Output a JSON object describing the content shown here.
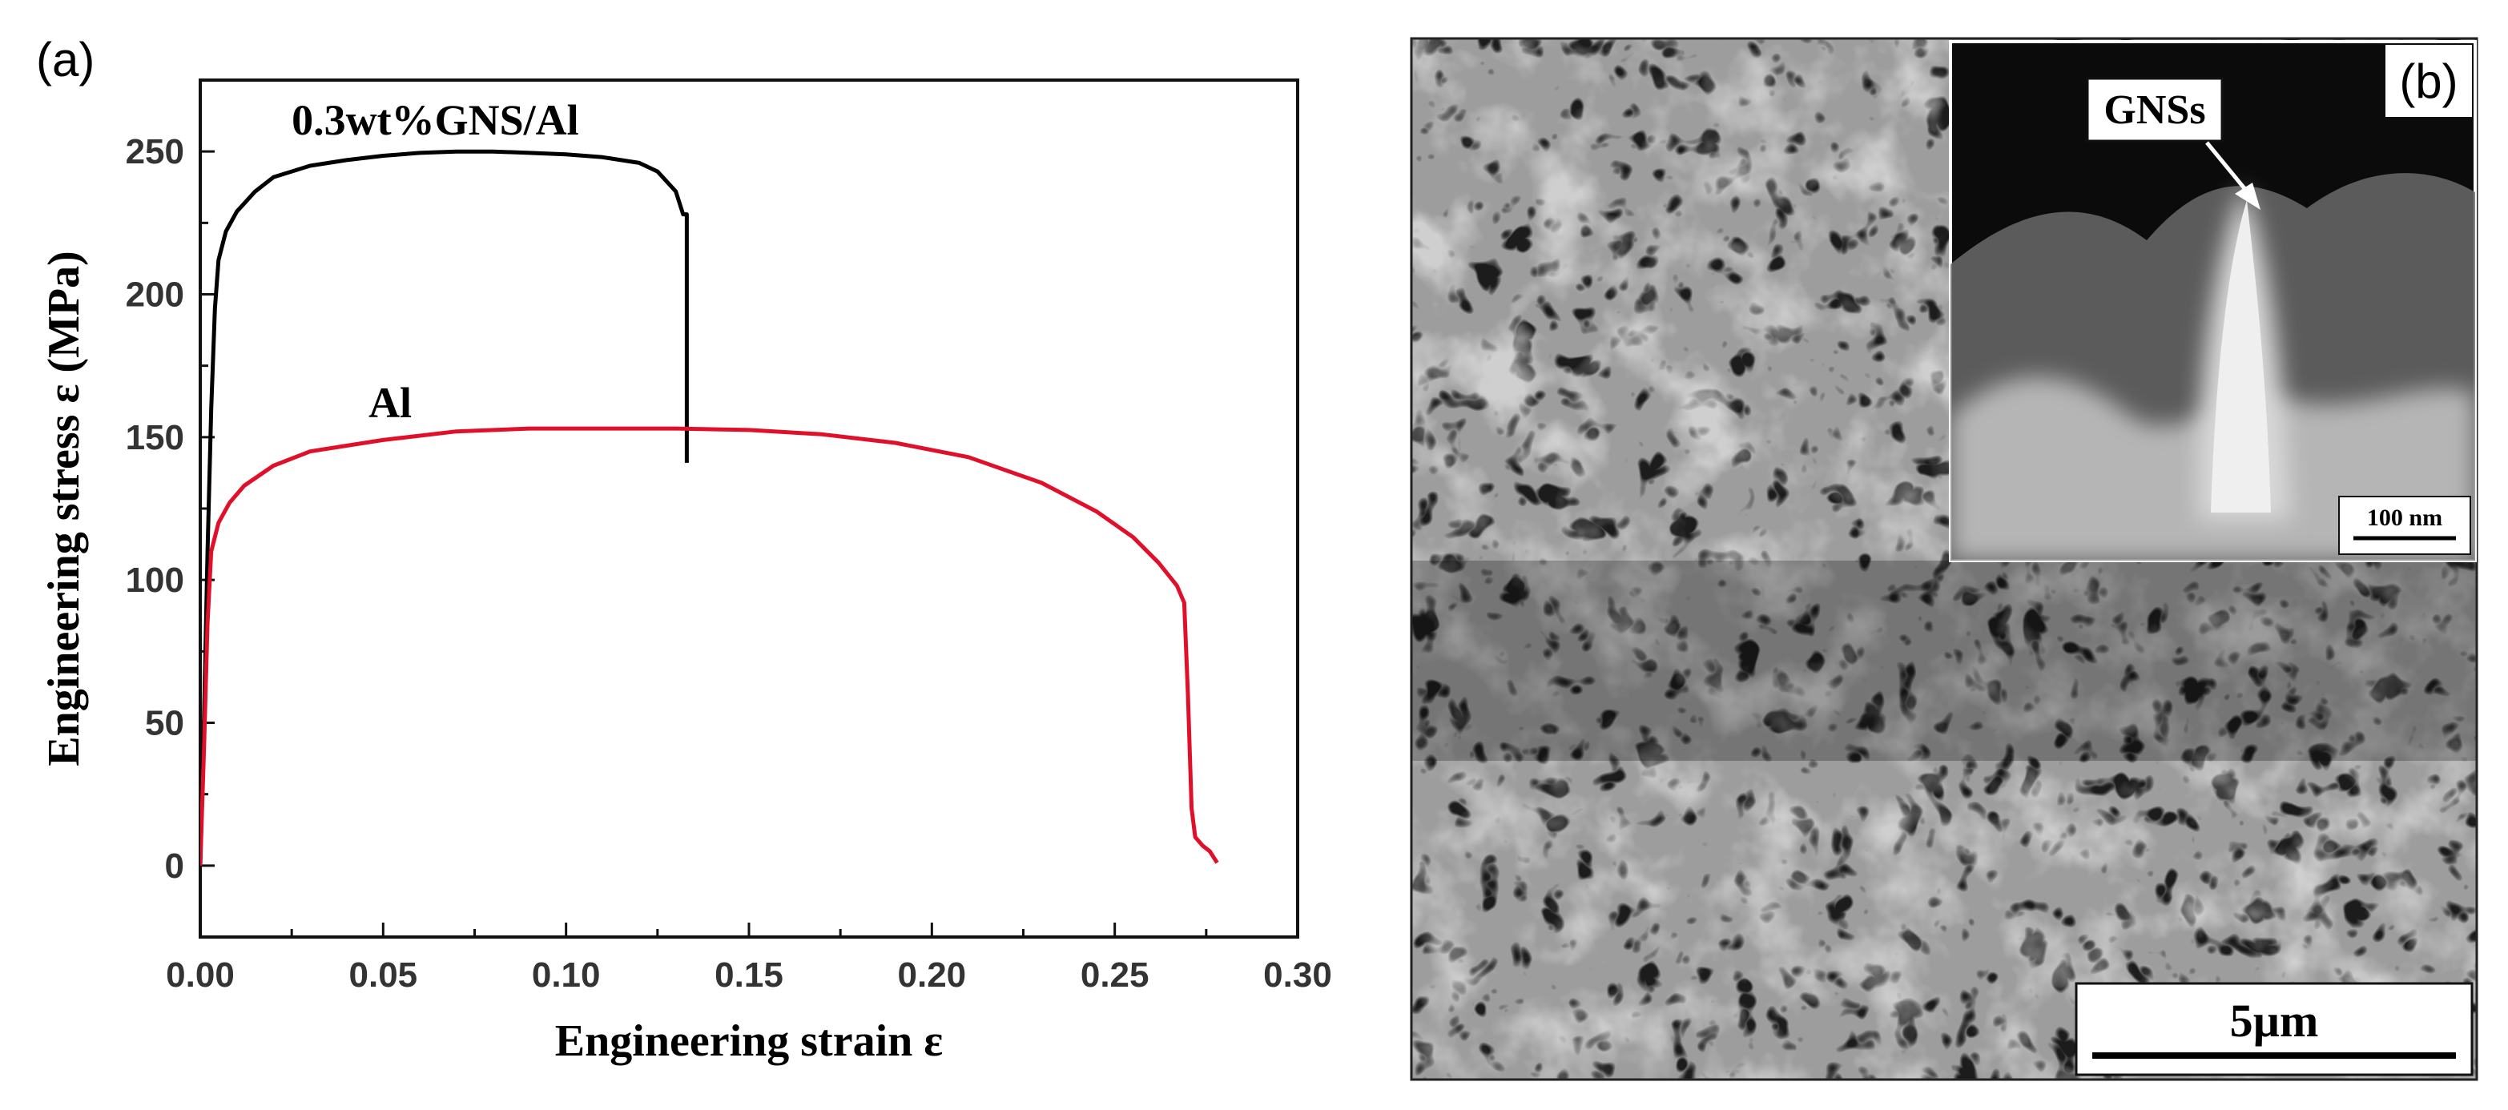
{
  "panels": {
    "a_label": "(a)",
    "b_label": "(b)"
  },
  "chart_data": {
    "type": "line",
    "title": "",
    "xlabel": "Engineering strain ε",
    "ylabel": "Engineering stress ε (MPa)",
    "xlim": [
      0.0,
      0.3
    ],
    "ylim": [
      -25,
      275
    ],
    "x_ticks": [
      0.0,
      0.05,
      0.1,
      0.15,
      0.2,
      0.25,
      0.3
    ],
    "x_tick_labels": [
      "0.00",
      "0.05",
      "0.10",
      "0.15",
      "0.20",
      "0.25",
      "0.30"
    ],
    "y_ticks": [
      0,
      50,
      100,
      150,
      200,
      250
    ],
    "y_tick_labels": [
      "0",
      "50",
      "100",
      "150",
      "200",
      "250"
    ],
    "grid": false,
    "series": [
      {
        "name": "0.3wt%GNS/Al",
        "color": "#000000",
        "x": [
          0.0,
          0.001,
          0.002,
          0.003,
          0.004,
          0.005,
          0.007,
          0.01,
          0.015,
          0.02,
          0.03,
          0.04,
          0.05,
          0.06,
          0.07,
          0.08,
          0.09,
          0.1,
          0.11,
          0.12,
          0.125,
          0.13,
          0.132,
          0.133,
          0.133
        ],
        "y": [
          0,
          50,
          110,
          160,
          195,
          212,
          222,
          229,
          236,
          241,
          245,
          247,
          248.5,
          249.5,
          250,
          250,
          249.5,
          249,
          248,
          246,
          243,
          236,
          228,
          228,
          141
        ]
      },
      {
        "name": "Al",
        "color": "#e0102a",
        "x": [
          0.0,
          0.001,
          0.002,
          0.003,
          0.005,
          0.008,
          0.012,
          0.02,
          0.03,
          0.04,
          0.05,
          0.07,
          0.09,
          0.11,
          0.13,
          0.15,
          0.17,
          0.19,
          0.21,
          0.23,
          0.245,
          0.255,
          0.262,
          0.267,
          0.269,
          0.27,
          0.271,
          0.272,
          0.274,
          0.276,
          0.278
        ],
        "y": [
          0,
          40,
          85,
          110,
          120,
          127,
          133,
          140,
          145,
          147,
          149,
          152,
          153,
          153,
          153,
          152.5,
          151,
          148,
          143,
          134,
          124,
          115,
          106,
          98,
          92,
          60,
          20,
          10,
          7,
          5,
          1
        ]
      }
    ],
    "annotations": [
      {
        "text": "0.3wt%GNS/Al",
        "x": 0.025,
        "y": 256
      },
      {
        "text": "Al",
        "x": 0.046,
        "y": 157
      }
    ]
  },
  "sem_image": {
    "inset_label": "GNSs",
    "inset_scale_bar": "100 nm",
    "scale_bar": "5µm"
  }
}
